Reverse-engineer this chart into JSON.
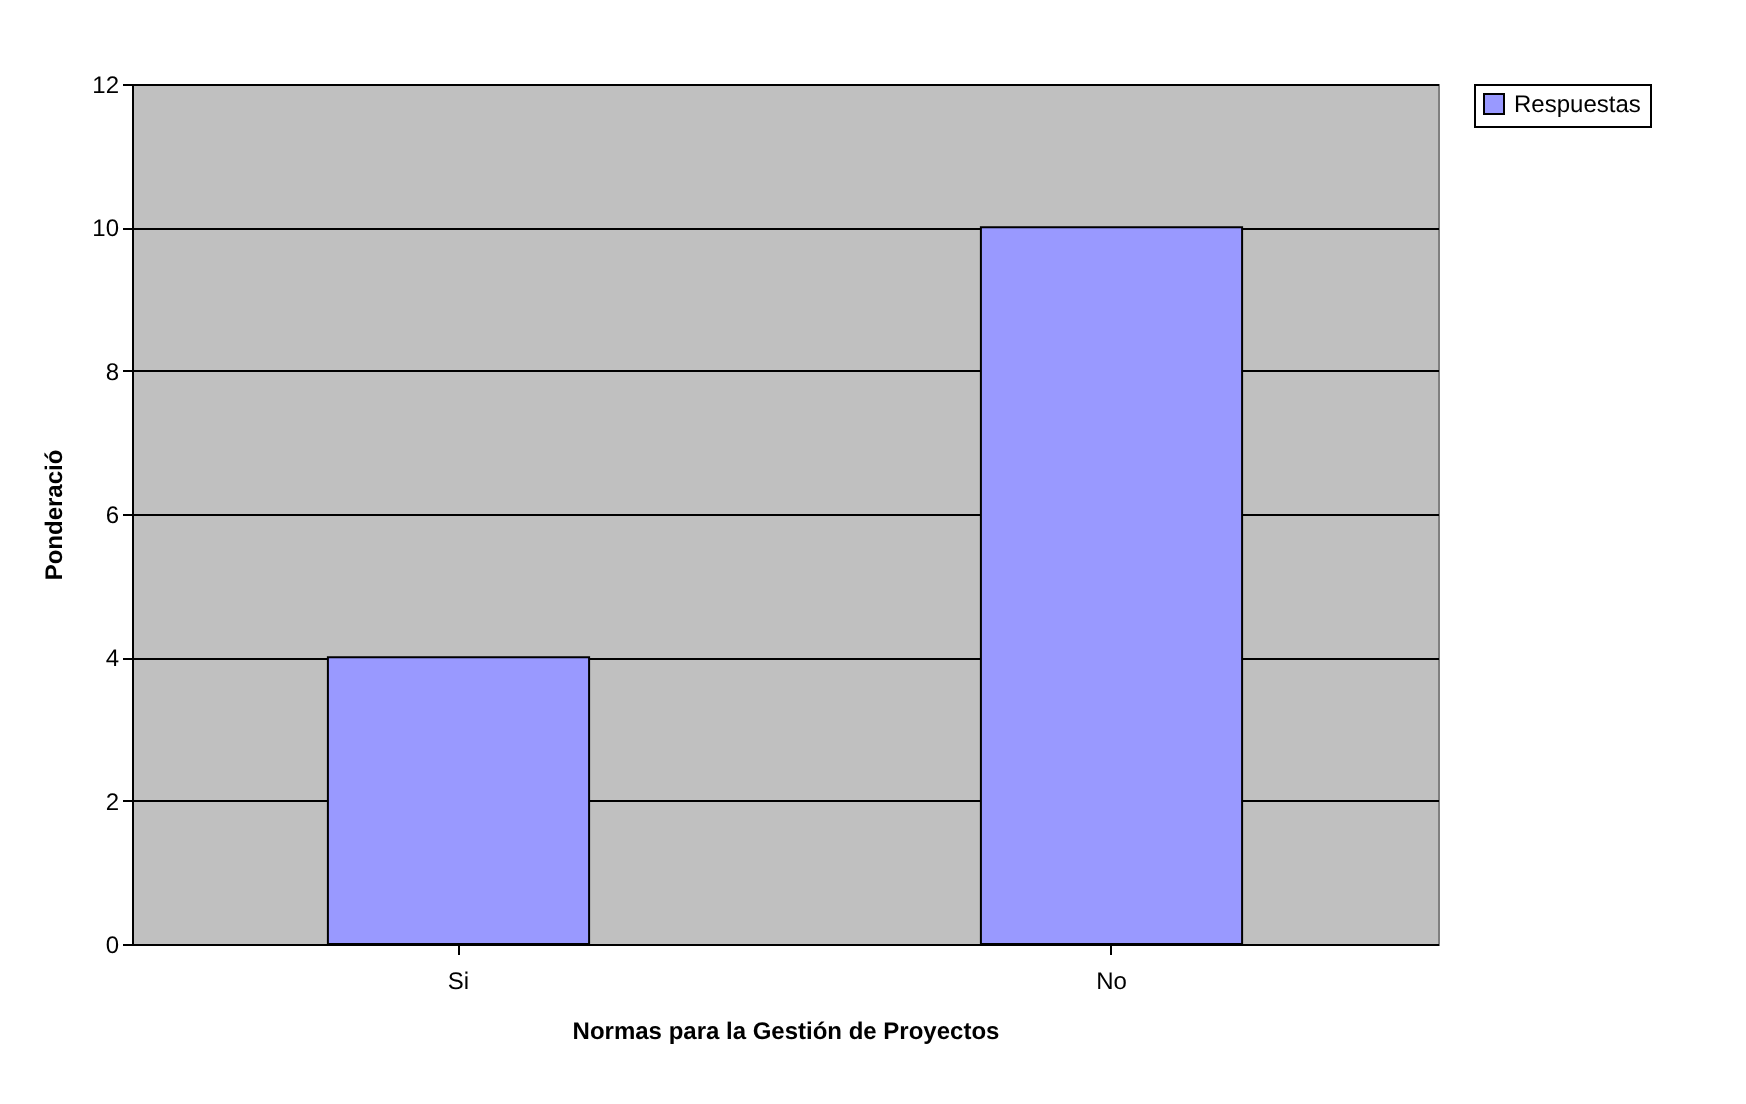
{
  "chart_data": {
    "type": "bar",
    "xlabel": "Normas para la Gestión de Proyectos",
    "ylabel": "Ponderació",
    "categories": [
      "Si",
      "No"
    ],
    "series": [
      {
        "name": "Respuestas",
        "color": "#9999ff",
        "values": [
          4,
          10
        ]
      }
    ],
    "ylim": [
      0,
      12
    ],
    "yticks": [
      0,
      2,
      4,
      6,
      8,
      10,
      12
    ],
    "grid": "y",
    "legend": "right"
  }
}
